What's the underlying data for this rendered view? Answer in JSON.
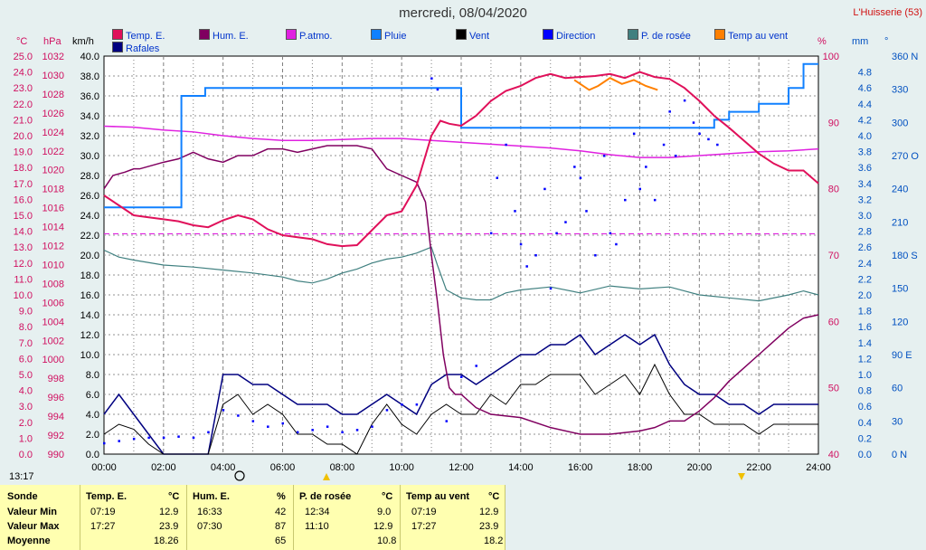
{
  "title": "mercredi, 08/04/2020",
  "station": "L'Huisserie (53)",
  "legend": [
    {
      "label": "Temp. E.",
      "color": "#e0105a"
    },
    {
      "label": "Hum. E.",
      "color": "#800060"
    },
    {
      "label": "P.atmo.",
      "color": "#e020e0"
    },
    {
      "label": "Pluie",
      "color": "#1080ff"
    },
    {
      "label": "Vent",
      "color": "#000000"
    },
    {
      "label": "Direction",
      "color": "#0000ff"
    },
    {
      "label": "P. de rosée",
      "color": "#408080"
    },
    {
      "label": "Temp au vent",
      "color": "#ff8000"
    },
    {
      "label": "Rafales",
      "color": "#000080"
    }
  ],
  "units": {
    "temp": "°C",
    "pressure": "hPa",
    "wind": "km/h",
    "humidity": "%",
    "rain": "mm",
    "direction": "°"
  },
  "time_label": "13:17",
  "chart_data": {
    "type": "line",
    "xlabel": "",
    "xlim": [
      "00:00",
      "24:00"
    ],
    "x_ticks": [
      "00:00",
      "02:00",
      "04:00",
      "06:00",
      "08:00",
      "10:00",
      "12:00",
      "14:00",
      "16:00",
      "18:00",
      "20:00",
      "22:00",
      "24:00"
    ],
    "axes": {
      "temp": {
        "ylim": [
          0,
          25
        ],
        "ticks": [
          "0.0",
          "1.0",
          "2.0",
          "3.0",
          "4.0",
          "5.0",
          "6.0",
          "7.0",
          "8.0",
          "9.0",
          "10.0",
          "11.0",
          "12.0",
          "13.0",
          "14.0",
          "15.0",
          "16.0",
          "17.0",
          "18.0",
          "19.0",
          "20.0",
          "21.0",
          "22.0",
          "23.0",
          "24.0",
          "25.0"
        ]
      },
      "pressure": {
        "ylim": [
          990,
          1032
        ],
        "ticks": [
          "990",
          "992",
          "994",
          "996",
          "998",
          "1000",
          "1002",
          "1004",
          "1006",
          "1008",
          "1010",
          "1012",
          "1014",
          "1016",
          "1018",
          "1020",
          "1022",
          "1024",
          "1026",
          "1028",
          "1030",
          "1032"
        ]
      },
      "wind": {
        "ylim": [
          0,
          40
        ],
        "ticks": [
          "0.0",
          "2.0",
          "4.0",
          "6.0",
          "8.0",
          "10.0",
          "12.0",
          "14.0",
          "16.0",
          "18.0",
          "20.0",
          "22.0",
          "24.0",
          "26.0",
          "28.0",
          "30.0",
          "32.0",
          "34.0",
          "36.0",
          "38.0",
          "40.0"
        ]
      },
      "humidity": {
        "ylim": [
          40,
          100
        ],
        "ticks": [
          "40",
          "50",
          "60",
          "70",
          "80",
          "90",
          "100"
        ]
      },
      "rain": {
        "ylim": [
          0,
          5.0
        ],
        "ticks": [
          "0.0",
          "0.2",
          "0.4",
          "0.6",
          "0.8",
          "1.0",
          "1.2",
          "1.4",
          "1.6",
          "1.8",
          "2.0",
          "2.2",
          "2.4",
          "2.6",
          "2.8",
          "3.0",
          "3.2",
          "3.4",
          "3.6",
          "3.8",
          "4.0",
          "4.2",
          "4.4",
          "4.6",
          "4.8"
        ]
      },
      "direction": {
        "ylim": [
          0,
          360
        ],
        "ticks": [
          "0 N",
          "30",
          "60",
          "90 E",
          "120",
          "150",
          "180 S",
          "210",
          "240",
          "270 O",
          "300",
          "330",
          "360 N"
        ]
      }
    },
    "series": [
      {
        "name": "Temp. E.",
        "color": "#e0105a",
        "axis": "wind",
        "x": [
          0,
          0.5,
          1,
          1.5,
          2,
          2.5,
          3,
          3.5,
          4,
          4.5,
          5,
          5.5,
          6,
          6.5,
          7,
          7.5,
          8,
          8.5,
          9,
          9.5,
          10,
          10.5,
          11,
          11.3,
          11.6,
          12,
          12.5,
          13,
          13.5,
          14,
          14.5,
          15,
          15.5,
          16,
          16.5,
          17,
          17.5,
          18,
          18.5,
          19,
          19.5,
          20,
          20.5,
          21,
          21.5,
          22,
          22.5,
          23,
          23.5,
          24
        ],
        "y": [
          26,
          25,
          24,
          23.8,
          23.6,
          23.4,
          23,
          22.8,
          23.5,
          24,
          23.6,
          22.6,
          22,
          21.8,
          21.6,
          21.1,
          20.9,
          21,
          22.5,
          24,
          24.4,
          27,
          32,
          33.5,
          33.2,
          33,
          34,
          35.5,
          36.5,
          37,
          37.8,
          38.2,
          37.8,
          37.9,
          38,
          38.2,
          37.8,
          38.4,
          37.9,
          37.7,
          36.8,
          35.5,
          34,
          32.8,
          31.5,
          30.2,
          29.2,
          28.5,
          28.5,
          27.2
        ]
      },
      {
        "name": "Hum. E.",
        "color": "#800060",
        "axis": "humidity",
        "x": [
          0,
          0.3,
          0.7,
          1,
          1.2,
          2,
          2.5,
          3,
          3.5,
          4,
          4.5,
          5,
          5.5,
          6,
          6.5,
          7,
          7.5,
          8,
          8.5,
          9,
          9.5,
          10,
          10.5,
          10.8,
          11,
          11.2,
          11.4,
          11.6,
          11.8,
          12,
          12.5,
          13,
          14,
          15,
          16,
          17,
          18,
          18.5,
          19,
          19.5,
          20,
          20.5,
          21,
          21.5,
          22,
          22.5,
          23,
          23.5,
          24
        ],
        "y": [
          80,
          82,
          82.5,
          83,
          83,
          84,
          84.5,
          85.5,
          84.5,
          84,
          85,
          85,
          86,
          86,
          85.5,
          86,
          86.5,
          86.5,
          86.5,
          86,
          83,
          82,
          81,
          78,
          70,
          63,
          55,
          50,
          49,
          49,
          47,
          46,
          45.5,
          44,
          43,
          43,
          43.5,
          44,
          45,
          45,
          46.5,
          48.5,
          51,
          53,
          55,
          57,
          59,
          60.5,
          61
        ]
      },
      {
        "name": "P.atmo.",
        "color": "#e020e0",
        "axis": "pressure",
        "x": [
          0,
          1,
          2,
          3,
          4,
          5,
          6,
          7,
          8,
          9,
          10,
          11,
          12,
          13,
          14,
          15,
          16,
          17,
          18,
          19,
          20,
          21,
          22,
          23,
          24
        ],
        "y": [
          1024.6,
          1024.5,
          1024.2,
          1024,
          1023.6,
          1023.3,
          1023.1,
          1023.1,
          1023.2,
          1023.3,
          1023.3,
          1023.1,
          1022.9,
          1022.7,
          1022.5,
          1022.3,
          1022,
          1021.6,
          1021.3,
          1021.3,
          1021.5,
          1021.7,
          1021.9,
          1022,
          1022.2
        ]
      },
      {
        "name": "P. de rosée",
        "color": "#408080",
        "axis": "wind",
        "x": [
          0,
          0.5,
          1,
          2,
          3,
          4,
          5,
          6,
          6.5,
          7,
          7.5,
          8,
          8.5,
          9,
          9.5,
          10,
          10.5,
          11,
          11.2,
          11.5,
          12,
          12.5,
          13,
          13.5,
          14,
          15,
          16,
          17,
          18,
          19,
          20,
          21,
          22,
          23,
          23.5,
          24
        ],
        "y": [
          20.5,
          19.8,
          19.5,
          19,
          18.8,
          18.5,
          18.2,
          17.8,
          17.4,
          17.2,
          17.6,
          18.2,
          18.6,
          19.2,
          19.6,
          19.8,
          20.2,
          20.8,
          19,
          16.5,
          15.7,
          15.5,
          15.5,
          16.2,
          16.5,
          16.8,
          16.2,
          16.9,
          16.6,
          16.8,
          16,
          15.7,
          15.4,
          16,
          16.4,
          16
        ]
      },
      {
        "name": "Vent",
        "color": "#000000",
        "axis": "wind",
        "x": [
          0,
          0.5,
          1,
          1.5,
          2,
          2.5,
          3,
          3.5,
          4,
          4.5,
          5,
          5.5,
          6,
          6.5,
          7,
          7.5,
          8,
          8.5,
          9,
          9.5,
          10,
          10.5,
          11,
          11.5,
          12,
          12.5,
          13,
          13.5,
          14,
          14.5,
          15,
          15.5,
          16,
          16.5,
          17,
          17.5,
          18,
          18.5,
          19,
          19.5,
          20,
          20.5,
          21,
          21.5,
          22,
          22.5,
          23,
          23.5,
          24
        ],
        "y": [
          2,
          3,
          2.5,
          1,
          0,
          0,
          0,
          0,
          5,
          6,
          4,
          5,
          4,
          2,
          2,
          1,
          1,
          0,
          3,
          5,
          3,
          2,
          4,
          5,
          4,
          4,
          6,
          5,
          7,
          7,
          8,
          8,
          8,
          6,
          7,
          8,
          6,
          9,
          6,
          4,
          4,
          3,
          3,
          3,
          2,
          3,
          3,
          3,
          3
        ]
      },
      {
        "name": "Rafales",
        "color": "#000080",
        "axis": "wind",
        "x": [
          0,
          0.5,
          1,
          1.5,
          2,
          2.5,
          3,
          3.5,
          4,
          4.5,
          5,
          5.5,
          6,
          6.5,
          7,
          7.5,
          8,
          8.5,
          9,
          9.5,
          10,
          10.5,
          11,
          11.5,
          12,
          12.5,
          13,
          13.5,
          14,
          14.5,
          15,
          15.5,
          16,
          16.5,
          17,
          17.5,
          18,
          18.5,
          19,
          19.5,
          20,
          20.5,
          21,
          21.5,
          22,
          22.5,
          23,
          23.5,
          24
        ],
        "y": [
          4,
          6,
          4,
          2,
          0,
          0,
          0,
          0,
          8,
          8,
          7,
          7,
          6,
          5,
          5,
          5,
          4,
          4,
          5,
          6,
          5,
          4,
          7,
          8,
          8,
          7,
          8,
          9,
          10,
          10,
          11,
          11,
          12,
          10,
          11,
          12,
          11,
          12,
          9,
          7,
          6,
          6,
          5,
          5,
          4,
          5,
          5,
          5,
          5
        ]
      },
      {
        "name": "Temp au vent",
        "color": "#ff8000",
        "axis": "wind",
        "x": [
          15.8,
          16,
          16.3,
          16.6,
          17,
          17.4,
          17.8,
          18.2,
          18.6
        ],
        "y": [
          37.6,
          37.2,
          36.6,
          37,
          37.8,
          37.2,
          37.6,
          37,
          36.6
        ]
      },
      {
        "name": "Pluie",
        "color": "#1080ff",
        "axis": "rain",
        "x": [
          0,
          1.5,
          2.6,
          3.2,
          3.4,
          3.8,
          4.5,
          5.5,
          6.5,
          7.5,
          8.8,
          9.5,
          10.5,
          12,
          12.5,
          13.5,
          14.5,
          15.5,
          16.5,
          17.5,
          18.5,
          19.5,
          20.5,
          21,
          21.5,
          22,
          22.5,
          23,
          23.5,
          24
        ],
        "y": [
          3.1,
          3.1,
          4.5,
          4.5,
          4.6,
          4.6,
          4.6,
          4.6,
          4.6,
          4.6,
          4.6,
          4.6,
          4.6,
          4.1,
          4.1,
          4.1,
          4.1,
          4.1,
          4.1,
          4.1,
          4.1,
          4.1,
          4.2,
          4.3,
          4.3,
          4.4,
          4.4,
          4.6,
          4.9,
          4.9
        ]
      },
      {
        "name": "Direction",
        "color": "#0000ff",
        "axis": "direction",
        "style": "dots",
        "x": [
          0,
          0.5,
          1,
          1.5,
          2,
          2.5,
          3,
          3.5,
          4,
          4.5,
          5,
          5.5,
          6,
          6.5,
          7,
          7.5,
          8,
          8.5,
          9,
          9.5,
          10,
          10.5,
          11,
          11.2,
          11.5,
          12,
          12.5,
          13,
          13.2,
          13.5,
          13.8,
          14,
          14.2,
          14.5,
          14.8,
          15,
          15.2,
          15.5,
          15.8,
          16,
          16.2,
          16.5,
          16.8,
          17,
          17.2,
          17.5,
          17.8,
          18,
          18.2,
          18.5,
          18.8,
          19,
          19.2,
          19.5,
          19.8,
          20,
          20.3,
          20.6
        ],
        "y": [
          10,
          12,
          14,
          15,
          15,
          16,
          15,
          20,
          40,
          35,
          30,
          25,
          28,
          20,
          22,
          25,
          20,
          22,
          25,
          40,
          45,
          45,
          340,
          330,
          30,
          70,
          80,
          200,
          250,
          280,
          220,
          190,
          170,
          180,
          240,
          150,
          200,
          210,
          260,
          250,
          220,
          180,
          270,
          200,
          190,
          230,
          290,
          240,
          260,
          230,
          280,
          310,
          270,
          320,
          300,
          290,
          285,
          280
        ]
      }
    ]
  },
  "summary": {
    "headers": [
      "Sonde",
      "Temp. E.",
      "°C",
      "Hum. E.",
      "%",
      "P. de rosée",
      "°C",
      "Temp au vent",
      "°C"
    ],
    "rows": [
      {
        "label": "Valeur Min",
        "cells": [
          "07:19",
          "12.9",
          "16:33",
          "42",
          "12:34",
          "9.0",
          "07:19",
          "12.9"
        ]
      },
      {
        "label": "Valeur Max",
        "cells": [
          "17:27",
          "23.9",
          "07:30",
          "87",
          "11:10",
          "12.9",
          "17:27",
          "23.9"
        ]
      },
      {
        "label": "Moyenne",
        "cells": [
          "",
          "18.26",
          "",
          "65",
          "",
          "10.8",
          "",
          "18.2"
        ]
      }
    ]
  }
}
